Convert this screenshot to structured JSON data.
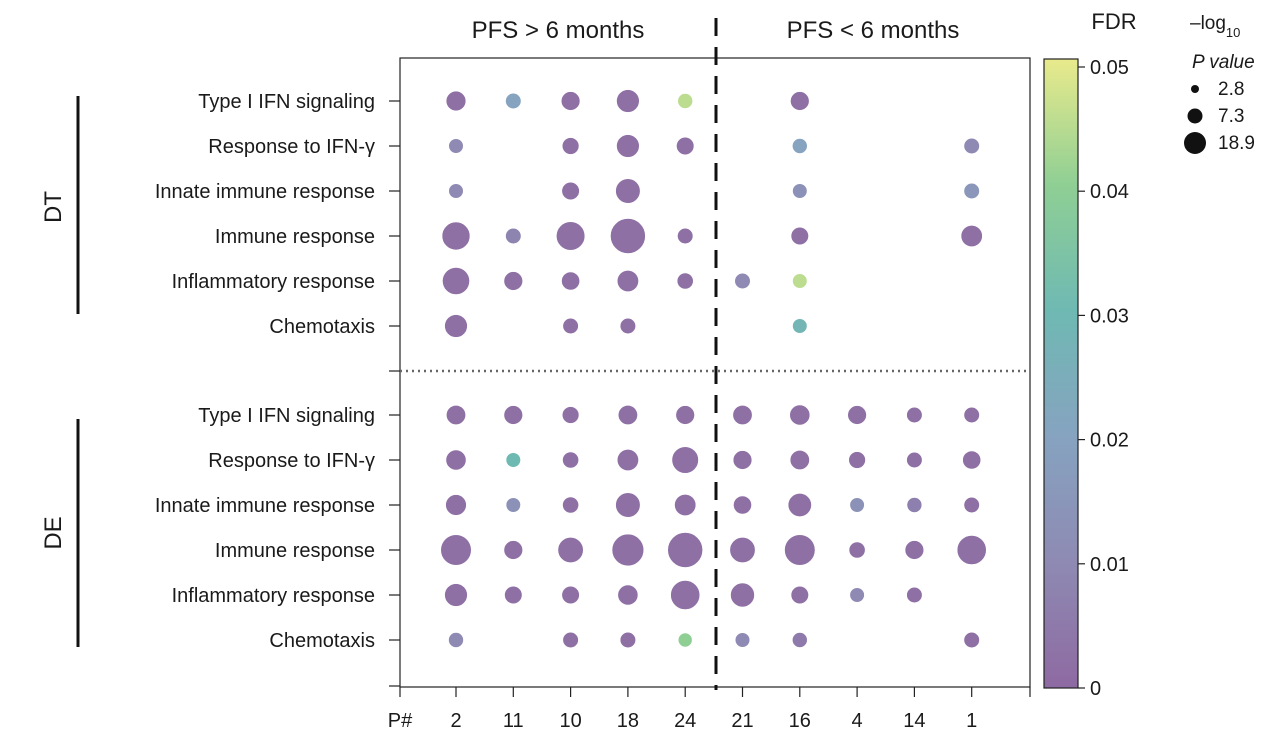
{
  "chart_data": {
    "type": "bubble",
    "headers": [
      "PFS > 6 months",
      "PFS < 6 months"
    ],
    "x_axis_label": "P#",
    "patients": [
      "2",
      "11",
      "10",
      "18",
      "24",
      "21",
      "16",
      "4",
      "14",
      "1"
    ],
    "row_labels": [
      "Type I IFN signaling",
      "Response to IFN-γ",
      "Innate immune response",
      "Immune response",
      "Inflammatory response",
      "Chemotaxis"
    ],
    "groups": [
      {
        "name": "DT",
        "rows": [
          {
            "label": "Type I IFN signaling",
            "points": [
              {
                "patient": "2",
                "neglog10p": 7.3,
                "fdr": 0.002
              },
              {
                "patient": "11",
                "neglog10p": 4.0,
                "fdr": 0.02
              },
              {
                "patient": "10",
                "neglog10p": 6.5,
                "fdr": 0.002
              },
              {
                "patient": "18",
                "neglog10p": 9.5,
                "fdr": 0.002
              },
              {
                "patient": "24",
                "neglog10p": 3.5,
                "fdr": 0.045
              },
              {
                "patient": "16",
                "neglog10p": 6.5,
                "fdr": 0.002
              }
            ]
          },
          {
            "label": "Response to IFN-γ",
            "points": [
              {
                "patient": "2",
                "neglog10p": 3.2,
                "fdr": 0.01
              },
              {
                "patient": "10",
                "neglog10p": 5.0,
                "fdr": 0.002
              },
              {
                "patient": "18",
                "neglog10p": 9.5,
                "fdr": 0.002
              },
              {
                "patient": "24",
                "neglog10p": 5.5,
                "fdr": 0.002
              },
              {
                "patient": "16",
                "neglog10p": 3.5,
                "fdr": 0.02
              },
              {
                "patient": "1",
                "neglog10p": 4.0,
                "fdr": 0.01
              }
            ]
          },
          {
            "label": "Innate immune response",
            "points": [
              {
                "patient": "2",
                "neglog10p": 3.2,
                "fdr": 0.01
              },
              {
                "patient": "10",
                "neglog10p": 5.5,
                "fdr": 0.002
              },
              {
                "patient": "18",
                "neglog10p": 11.0,
                "fdr": 0.002
              },
              {
                "patient": "16",
                "neglog10p": 3.2,
                "fdr": 0.013
              },
              {
                "patient": "1",
                "neglog10p": 4.0,
                "fdr": 0.015
              }
            ]
          },
          {
            "label": "Immune response",
            "points": [
              {
                "patient": "2",
                "neglog10p": 13.5,
                "fdr": 0.002
              },
              {
                "patient": "11",
                "neglog10p": 4.0,
                "fdr": 0.008
              },
              {
                "patient": "10",
                "neglog10p": 14.0,
                "fdr": 0.002
              },
              {
                "patient": "18",
                "neglog10p": 18.9,
                "fdr": 0.002
              },
              {
                "patient": "24",
                "neglog10p": 4.0,
                "fdr": 0.002
              },
              {
                "patient": "16",
                "neglog10p": 5.5,
                "fdr": 0.002
              },
              {
                "patient": "1",
                "neglog10p": 8.5,
                "fdr": 0.002
              }
            ]
          },
          {
            "label": "Inflammatory response",
            "points": [
              {
                "patient": "2",
                "neglog10p": 13.0,
                "fdr": 0.002
              },
              {
                "patient": "11",
                "neglog10p": 6.5,
                "fdr": 0.002
              },
              {
                "patient": "10",
                "neglog10p": 6.0,
                "fdr": 0.002
              },
              {
                "patient": "18",
                "neglog10p": 8.5,
                "fdr": 0.002
              },
              {
                "patient": "24",
                "neglog10p": 4.5,
                "fdr": 0.002
              },
              {
                "patient": "21",
                "neglog10p": 4.0,
                "fdr": 0.01
              },
              {
                "patient": "16",
                "neglog10p": 3.2,
                "fdr": 0.045
              }
            ]
          },
          {
            "label": "Chemotaxis",
            "points": [
              {
                "patient": "2",
                "neglog10p": 9.5,
                "fdr": 0.002
              },
              {
                "patient": "10",
                "neglog10p": 4.0,
                "fdr": 0.002
              },
              {
                "patient": "18",
                "neglog10p": 4.0,
                "fdr": 0.002
              },
              {
                "patient": "16",
                "neglog10p": 3.2,
                "fdr": 0.028
              }
            ]
          }
        ]
      },
      {
        "name": "DE",
        "rows": [
          {
            "label": "Type I IFN signaling",
            "points": [
              {
                "patient": "2",
                "neglog10p": 7.0,
                "fdr": 0.002
              },
              {
                "patient": "11",
                "neglog10p": 6.5,
                "fdr": 0.002
              },
              {
                "patient": "10",
                "neglog10p": 5.0,
                "fdr": 0.002
              },
              {
                "patient": "18",
                "neglog10p": 7.0,
                "fdr": 0.002
              },
              {
                "patient": "24",
                "neglog10p": 6.5,
                "fdr": 0.002
              },
              {
                "patient": "21",
                "neglog10p": 7.0,
                "fdr": 0.002
              },
              {
                "patient": "16",
                "neglog10p": 7.5,
                "fdr": 0.002
              },
              {
                "patient": "4",
                "neglog10p": 6.5,
                "fdr": 0.002
              },
              {
                "patient": "14",
                "neglog10p": 4.0,
                "fdr": 0.002
              },
              {
                "patient": "1",
                "neglog10p": 4.0,
                "fdr": 0.002
              }
            ]
          },
          {
            "label": "Response to IFN-γ",
            "points": [
              {
                "patient": "2",
                "neglog10p": 7.5,
                "fdr": 0.002
              },
              {
                "patient": "11",
                "neglog10p": 3.2,
                "fdr": 0.03
              },
              {
                "patient": "10",
                "neglog10p": 4.5,
                "fdr": 0.002
              },
              {
                "patient": "18",
                "neglog10p": 8.5,
                "fdr": 0.002
              },
              {
                "patient": "24",
                "neglog10p": 12.5,
                "fdr": 0.002
              },
              {
                "patient": "21",
                "neglog10p": 6.5,
                "fdr": 0.002
              },
              {
                "patient": "16",
                "neglog10p": 7.0,
                "fdr": 0.002
              },
              {
                "patient": "4",
                "neglog10p": 5.0,
                "fdr": 0.002
              },
              {
                "patient": "14",
                "neglog10p": 4.0,
                "fdr": 0.002
              },
              {
                "patient": "1",
                "neglog10p": 6.0,
                "fdr": 0.002
              }
            ]
          },
          {
            "label": "Innate immune response",
            "points": [
              {
                "patient": "2",
                "neglog10p": 8.0,
                "fdr": 0.002
              },
              {
                "patient": "11",
                "neglog10p": 3.2,
                "fdr": 0.013
              },
              {
                "patient": "10",
                "neglog10p": 4.5,
                "fdr": 0.002
              },
              {
                "patient": "18",
                "neglog10p": 11.0,
                "fdr": 0.002
              },
              {
                "patient": "24",
                "neglog10p": 8.5,
                "fdr": 0.002
              },
              {
                "patient": "21",
                "neglog10p": 6.0,
                "fdr": 0.002
              },
              {
                "patient": "16",
                "neglog10p": 10.0,
                "fdr": 0.002
              },
              {
                "patient": "4",
                "neglog10p": 3.2,
                "fdr": 0.013
              },
              {
                "patient": "14",
                "neglog10p": 3.5,
                "fdr": 0.007
              },
              {
                "patient": "1",
                "neglog10p": 4.0,
                "fdr": 0.002
              }
            ]
          },
          {
            "label": "Immune response",
            "points": [
              {
                "patient": "2",
                "neglog10p": 15.5,
                "fdr": 0.002
              },
              {
                "patient": "11",
                "neglog10p": 6.5,
                "fdr": 0.002
              },
              {
                "patient": "10",
                "neglog10p": 11.5,
                "fdr": 0.002
              },
              {
                "patient": "18",
                "neglog10p": 16.5,
                "fdr": 0.002
              },
              {
                "patient": "24",
                "neglog10p": 18.9,
                "fdr": 0.002
              },
              {
                "patient": "21",
                "neglog10p": 11.5,
                "fdr": 0.002
              },
              {
                "patient": "16",
                "neglog10p": 15.5,
                "fdr": 0.002
              },
              {
                "patient": "4",
                "neglog10p": 4.5,
                "fdr": 0.002
              },
              {
                "patient": "14",
                "neglog10p": 6.5,
                "fdr": 0.002
              },
              {
                "patient": "1",
                "neglog10p": 14.5,
                "fdr": 0.002
              }
            ]
          },
          {
            "label": "Inflammatory response",
            "points": [
              {
                "patient": "2",
                "neglog10p": 9.5,
                "fdr": 0.002
              },
              {
                "patient": "11",
                "neglog10p": 5.5,
                "fdr": 0.002
              },
              {
                "patient": "10",
                "neglog10p": 5.5,
                "fdr": 0.002
              },
              {
                "patient": "18",
                "neglog10p": 7.5,
                "fdr": 0.002
              },
              {
                "patient": "24",
                "neglog10p": 14.5,
                "fdr": 0.002
              },
              {
                "patient": "21",
                "neglog10p": 10.5,
                "fdr": 0.002
              },
              {
                "patient": "16",
                "neglog10p": 5.5,
                "fdr": 0.002
              },
              {
                "patient": "4",
                "neglog10p": 3.2,
                "fdr": 0.01
              },
              {
                "patient": "14",
                "neglog10p": 4.0,
                "fdr": 0.002
              }
            ]
          },
          {
            "label": "Chemotaxis",
            "points": [
              {
                "patient": "2",
                "neglog10p": 3.5,
                "fdr": 0.01
              },
              {
                "patient": "10",
                "neglog10p": 4.0,
                "fdr": 0.002
              },
              {
                "patient": "18",
                "neglog10p": 4.0,
                "fdr": 0.002
              },
              {
                "patient": "24",
                "neglog10p": 2.8,
                "fdr": 0.04
              },
              {
                "patient": "21",
                "neglog10p": 3.2,
                "fdr": 0.01
              },
              {
                "patient": "16",
                "neglog10p": 3.5,
                "fdr": 0.005
              },
              {
                "patient": "1",
                "neglog10p": 4.0,
                "fdr": 0.002
              }
            ]
          }
        ]
      }
    ],
    "colorbar": {
      "title": "FDR",
      "min": 0,
      "max": 0.05,
      "tick_labels": [
        "0.05",
        "0.04",
        "0.03",
        "0.02",
        "0.01",
        "0"
      ],
      "colormap": [
        "#8e6aa2",
        "#8e8ab3",
        "#86a3c0",
        "#6fb9b3",
        "#8fcf94",
        "#e9ea8c"
      ]
    },
    "size_legend": {
      "title_part1": "–log",
      "title_sub": "10",
      "title_part2": "P value",
      "values": [
        2.8,
        7.3,
        18.9
      ],
      "value_labels": [
        "2.8",
        "7.3",
        "18.9"
      ]
    },
    "grid": false
  }
}
